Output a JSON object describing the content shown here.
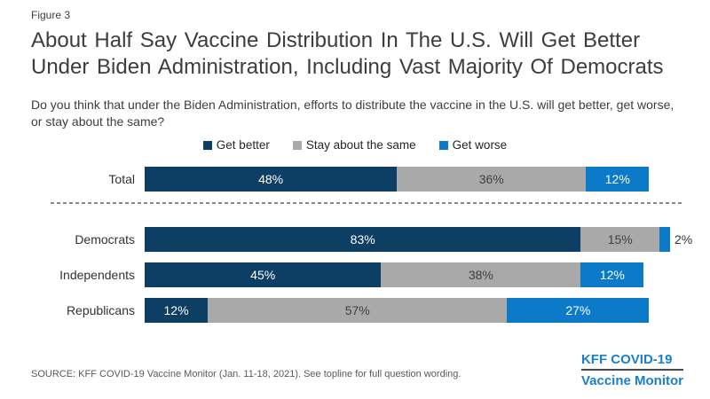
{
  "figure_label": "Figure 3",
  "title": "About Half Say Vaccine Distribution In The U.S. Will Get Better Under Biden Administration, Including Vast Majority Of Democrats",
  "question": "Do you think that under the Biden Administration, efforts to distribute the vaccine in the U.S. will get better, get worse, or stay about the same?",
  "source": "SOURCE: KFF COVID-19 Vaccine Monitor (Jan. 11-18, 2021). See topline for full question wording.",
  "logo": {
    "line1": "KFF COVID-19",
    "line2": "Vaccine Monitor",
    "color": "#1a80c9"
  },
  "chart_data": {
    "type": "bar",
    "stacked": true,
    "orientation": "horizontal",
    "title": "About Half Say Vaccine Distribution In The U.S. Will Get Better Under Biden Administration, Including Vast Majority Of Democrats",
    "categories": [
      "Total",
      "Democrats",
      "Independents",
      "Republicans"
    ],
    "series": [
      {
        "name": "Get better",
        "color": "#0d3e64",
        "label_color": "#ffffff",
        "values": [
          48,
          83,
          45,
          12
        ]
      },
      {
        "name": "Stay about the same",
        "color": "#a9a9a9",
        "label_color": "#404040",
        "values": [
          36,
          15,
          38,
          57
        ]
      },
      {
        "name": "Get worse",
        "color": "#0a7ac9",
        "label_color": "#ffffff",
        "values": [
          12,
          2,
          12,
          27
        ]
      }
    ],
    "value_suffix": "%",
    "xlim": [
      0,
      100
    ],
    "legend_position": "top-center",
    "divider_after_category": "Total",
    "grid": false,
    "outside_label_threshold": 3
  }
}
